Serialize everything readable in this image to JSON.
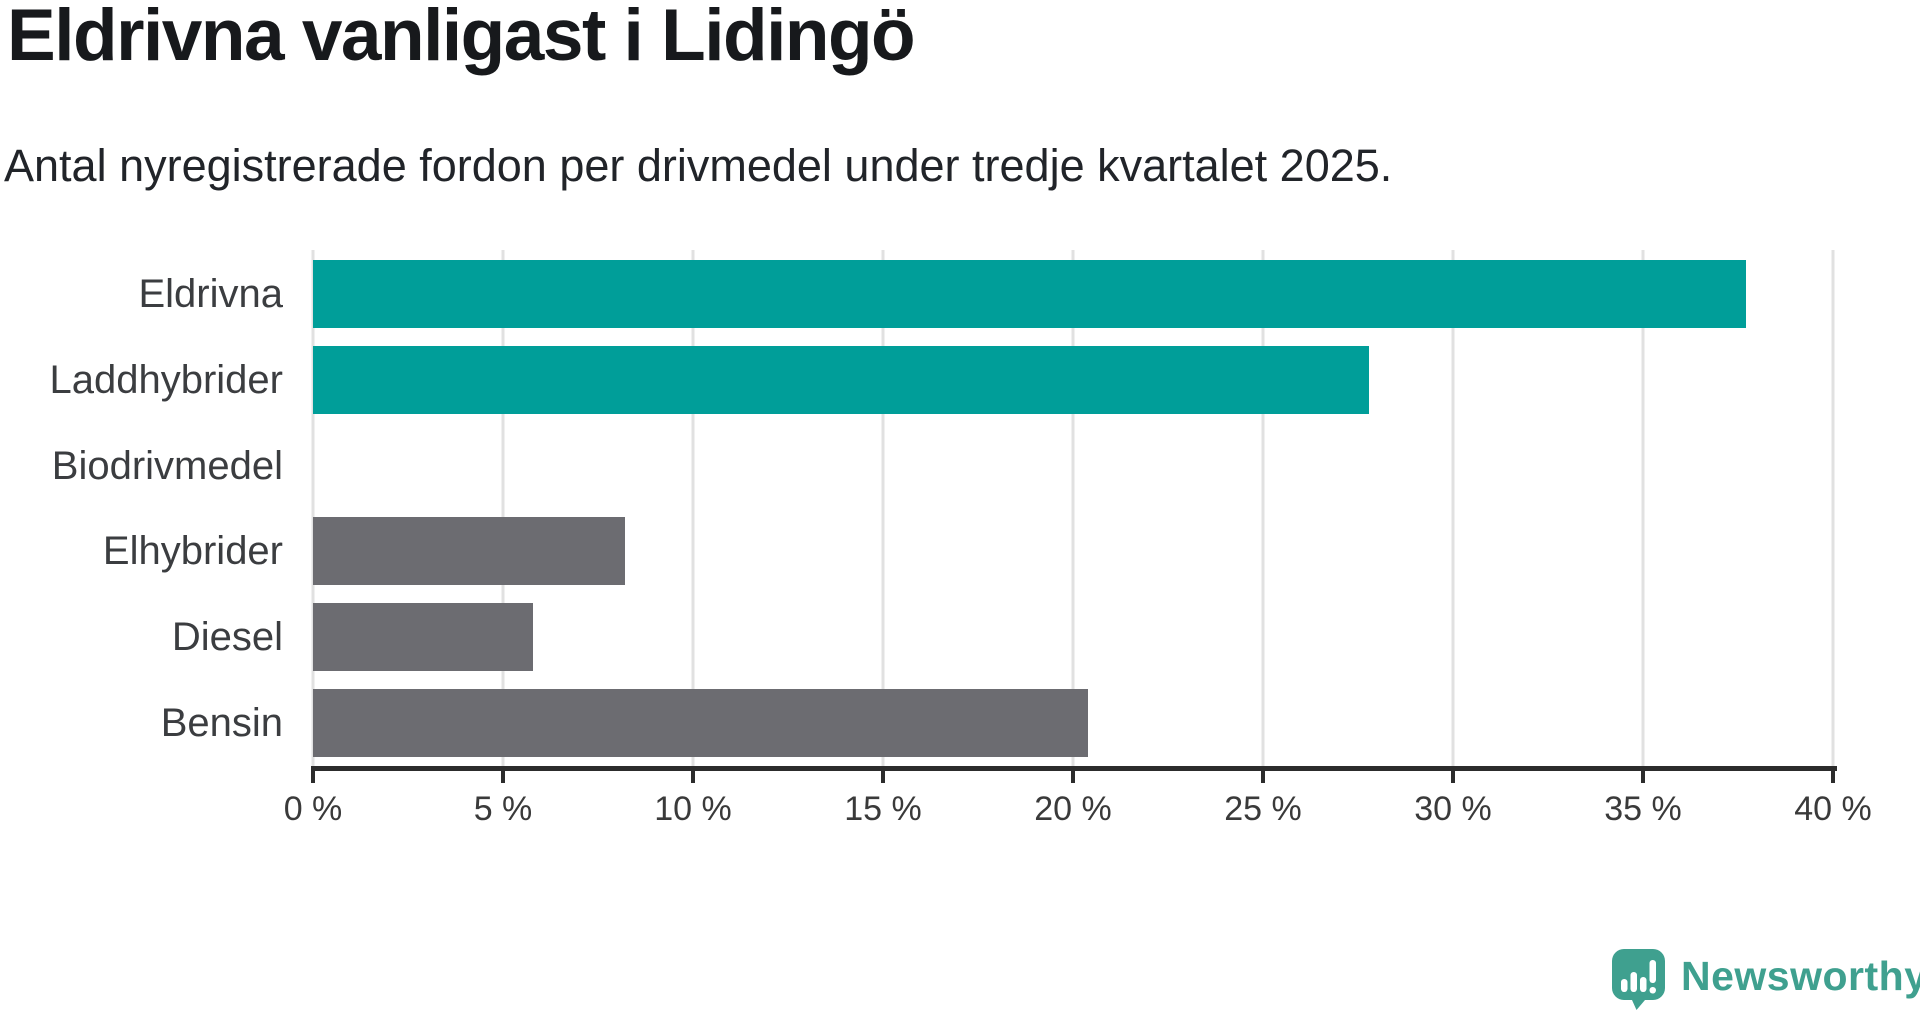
{
  "chart_data": {
    "type": "bar",
    "orientation": "horizontal",
    "title": "Eldrivna vanligast i Lidingö",
    "subtitle": "Antal nyregistrerade fordon per drivmedel under tredje kvartalet 2025.",
    "categories": [
      "Eldrivna",
      "Laddhybrider",
      "Biodrivmedel",
      "Elhybrider",
      "Diesel",
      "Bensin"
    ],
    "values": [
      37.7,
      27.8,
      0,
      8.2,
      5.8,
      20.4
    ],
    "unit": "%",
    "bar_colors": [
      "#009E99",
      "#009E99",
      "#009E99",
      "#6C6C71",
      "#6C6C71",
      "#6C6C71"
    ],
    "xlim": [
      0,
      40
    ],
    "x_ticks": [
      0,
      5,
      10,
      15,
      20,
      25,
      30,
      35,
      40
    ],
    "x_tick_labels": [
      "0 %",
      "5 %",
      "10 %",
      "15 %",
      "20 %",
      "25 %",
      "30 %",
      "35 %",
      "40 %"
    ],
    "grid": true,
    "grid_color": "#e1e1e1",
    "legend": "none"
  },
  "colors": {
    "highlight_teal": "#009E99",
    "neutral_gray": "#6C6C71",
    "axis": "#2c2c2c",
    "logo_teal": "#3FA08F"
  },
  "footer": {
    "brand": "Newsworthy"
  }
}
